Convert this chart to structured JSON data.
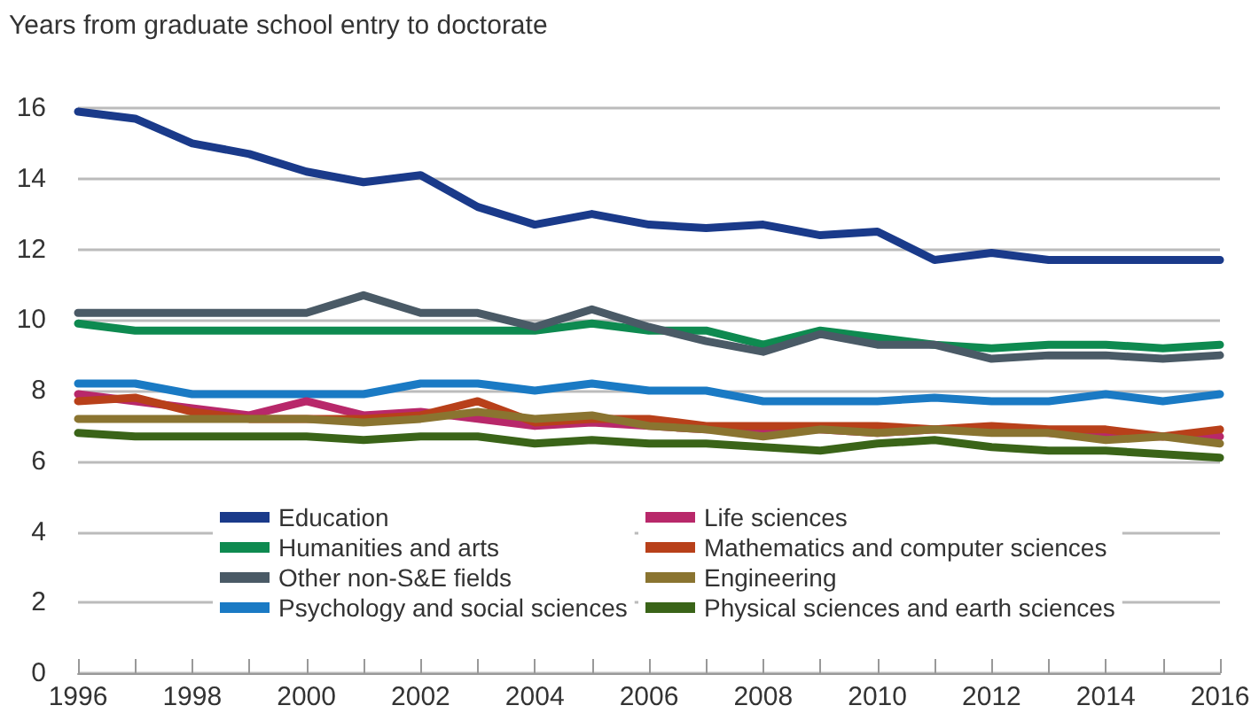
{
  "chart_data": {
    "type": "line",
    "ylabel": "Years from graduate school entry to doctorate",
    "x": [
      1996,
      1997,
      1998,
      1999,
      2000,
      2001,
      2002,
      2003,
      2004,
      2005,
      2006,
      2007,
      2008,
      2009,
      2010,
      2011,
      2012,
      2013,
      2014,
      2015,
      2016
    ],
    "series": [
      {
        "name": "Education",
        "color": "#1a3a8a",
        "values": [
          15.9,
          15.7,
          15.0,
          14.7,
          14.2,
          13.9,
          14.1,
          13.2,
          12.7,
          13.0,
          12.7,
          12.6,
          12.7,
          12.4,
          12.5,
          11.7,
          11.9,
          11.7,
          11.7,
          11.7,
          11.7
        ]
      },
      {
        "name": "Humanities and arts",
        "color": "#0e8a50",
        "values": [
          9.9,
          9.7,
          9.7,
          9.7,
          9.7,
          9.7,
          9.7,
          9.7,
          9.7,
          9.9,
          9.7,
          9.7,
          9.3,
          9.7,
          9.5,
          9.3,
          9.2,
          9.3,
          9.3,
          9.2,
          9.3
        ]
      },
      {
        "name": "Other non-S&E fields",
        "color": "#4a5a66",
        "values": [
          10.2,
          10.2,
          10.2,
          10.2,
          10.2,
          10.7,
          10.2,
          10.2,
          9.8,
          10.3,
          9.8,
          9.4,
          9.1,
          9.6,
          9.3,
          9.3,
          8.9,
          9.0,
          9.0,
          8.9,
          9.0
        ]
      },
      {
        "name": "Psychology and social sciences",
        "color": "#1a7ac4",
        "values": [
          8.2,
          8.2,
          7.9,
          7.9,
          7.9,
          7.9,
          8.2,
          8.2,
          8.0,
          8.2,
          8.0,
          8.0,
          7.7,
          7.7,
          7.7,
          7.8,
          7.7,
          7.7,
          7.9,
          7.7,
          7.9
        ]
      },
      {
        "name": "Life sciences",
        "color": "#b8286a",
        "values": [
          7.9,
          7.7,
          7.5,
          7.3,
          7.7,
          7.3,
          7.4,
          7.2,
          7.0,
          7.1,
          7.0,
          6.9,
          6.9,
          6.9,
          6.8,
          6.9,
          6.9,
          6.8,
          6.7,
          6.7,
          6.7
        ]
      },
      {
        "name": "Mathematics and computer sciences",
        "color": "#b8401a",
        "values": [
          7.7,
          7.8,
          7.4,
          7.2,
          7.2,
          7.2,
          7.3,
          7.7,
          7.1,
          7.2,
          7.2,
          7.0,
          7.0,
          7.0,
          7.0,
          6.9,
          7.0,
          6.9,
          6.9,
          6.7,
          6.9
        ]
      },
      {
        "name": "Engineering",
        "color": "#8a7430",
        "values": [
          7.2,
          7.2,
          7.2,
          7.2,
          7.2,
          7.1,
          7.2,
          7.4,
          7.2,
          7.3,
          7.0,
          6.9,
          6.7,
          6.9,
          6.8,
          6.9,
          6.8,
          6.8,
          6.6,
          6.7,
          6.5
        ]
      },
      {
        "name": "Physical sciences and earth sciences",
        "color": "#3a6418",
        "values": [
          6.8,
          6.7,
          6.7,
          6.7,
          6.7,
          6.6,
          6.7,
          6.7,
          6.5,
          6.6,
          6.5,
          6.5,
          6.4,
          6.3,
          6.5,
          6.6,
          6.4,
          6.3,
          6.3,
          6.2,
          6.1
        ]
      }
    ],
    "xlim": [
      1996,
      2016
    ],
    "xticks": [
      1996,
      {
        "value": 1997,
        "label": null
      },
      1998,
      {
        "value": 1999,
        "label": null
      },
      2000,
      {
        "value": 2001,
        "label": null
      },
      2002,
      {
        "value": 2003,
        "label": null
      },
      2004,
      {
        "value": 2005,
        "label": null
      },
      2006,
      {
        "value": 2007,
        "label": null
      },
      2008,
      {
        "value": 2009,
        "label": null
      },
      2010,
      {
        "value": 2011,
        "label": null
      },
      2012,
      {
        "value": 2013,
        "label": null
      },
      2014,
      {
        "value": 2015,
        "label": null
      },
      2016
    ],
    "ylim": [
      0,
      16
    ],
    "yticks": [
      0,
      2,
      4,
      6,
      8,
      10,
      12,
      14,
      16
    ],
    "grid": "y",
    "legend": "bottom",
    "marker": "none",
    "line_style": "solid"
  }
}
